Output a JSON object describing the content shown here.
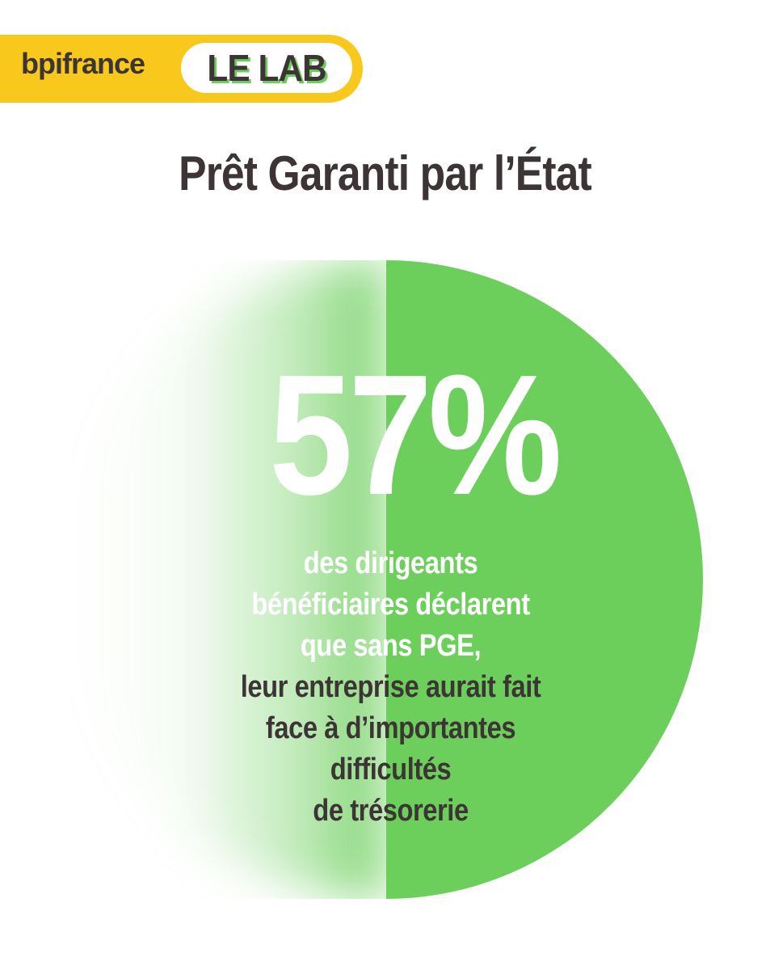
{
  "brand": {
    "logo": "bpifrance",
    "badge": "LE LAB"
  },
  "title": "Prêt Garanti par l’État",
  "stat": {
    "value": "57%",
    "percent": 57,
    "lines_white": [
      "des dirigeants",
      "bénéficiaires déclarent",
      "que sans PGE,"
    ],
    "lines_dark": [
      "leur entreprise aurait fait",
      "face à d’importantes",
      "difficultés",
      "de trésorerie"
    ]
  },
  "colors": {
    "brand_yellow": "#f8c91c",
    "accent_green": "#6ccf5c",
    "text_dark": "#3d3535"
  }
}
